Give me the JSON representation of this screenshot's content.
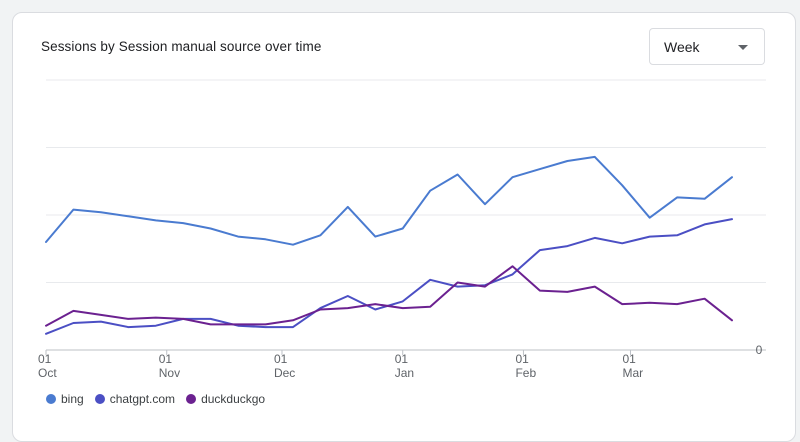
{
  "card": {
    "title": "Sessions by Session manual source over time"
  },
  "period_select": {
    "value": "Week",
    "icon": "caret-down-icon"
  },
  "chart_data": {
    "type": "line",
    "title": "Sessions by Session manual source over time",
    "x_ticks": [
      {
        "day": "01",
        "month": "Oct",
        "index": 0
      },
      {
        "day": "01",
        "month": "Nov",
        "index": 4.4
      },
      {
        "day": "01",
        "month": "Dec",
        "index": 8.6
      },
      {
        "day": "01",
        "month": "Jan",
        "index": 13.0
      },
      {
        "day": "01",
        "month": "Feb",
        "index": 17.4
      },
      {
        "day": "01",
        "month": "Mar",
        "index": 21.3
      }
    ],
    "y_ticks": [
      "0"
    ],
    "ylim": [
      0,
      100
    ],
    "grid": true,
    "legend_position": "bottom-left",
    "series": [
      {
        "name": "bing",
        "color": "#4a7bd0",
        "values": [
          40,
          52,
          51,
          49.5,
          48,
          47,
          45,
          42,
          41,
          39,
          42.5,
          53,
          42,
          45,
          59,
          65,
          54,
          64,
          67,
          70,
          71.5,
          61,
          49,
          56.5,
          56,
          64
        ]
      },
      {
        "name": "chatgpt.com",
        "color": "#4b4fc4",
        "values": [
          6,
          10,
          10.5,
          8.5,
          9,
          11.5,
          11.5,
          9,
          8.5,
          8.5,
          15.5,
          20,
          15,
          18,
          26,
          23.5,
          24,
          28,
          37,
          38.5,
          41.5,
          39.5,
          42,
          42.5,
          46.5,
          48.5
        ]
      },
      {
        "name": "duckduckgo",
        "color": "#6b2190",
        "values": [
          9,
          14.5,
          13,
          11.5,
          12,
          11.5,
          9.5,
          9.5,
          9.5,
          11,
          15,
          15.5,
          17,
          15.5,
          16,
          25,
          23.5,
          31,
          22,
          21.5,
          23.5,
          17,
          17.5,
          17,
          19,
          11
        ]
      }
    ]
  },
  "legend": {
    "items": [
      {
        "label": "bing",
        "color": "#4a7bd0"
      },
      {
        "label": "chatgpt.com",
        "color": "#4b4fc4"
      },
      {
        "label": "duckduckgo",
        "color": "#6b2190"
      }
    ]
  }
}
